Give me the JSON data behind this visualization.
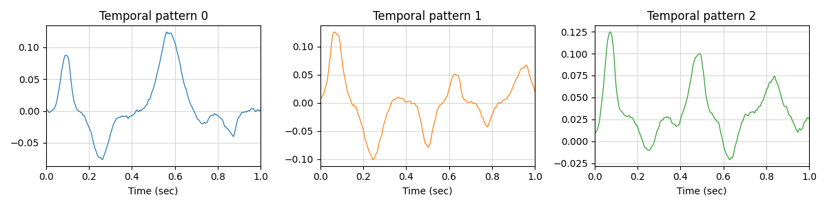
{
  "titles": [
    "Temporal pattern 0",
    "Temporal pattern 1",
    "Temporal pattern 2"
  ],
  "colors": [
    "#1f77b4",
    "#ff7f0e",
    "#2ca02c"
  ],
  "xlabel": "Time (sec)",
  "xlim": [
    0.0,
    1.0
  ],
  "xticks": [
    0.0,
    0.2,
    0.4,
    0.6,
    0.8,
    1.0
  ],
  "grid": true,
  "figsize": [
    12.0,
    3.0
  ],
  "dpi": 100,
  "n_points": 1000,
  "seed": 42
}
